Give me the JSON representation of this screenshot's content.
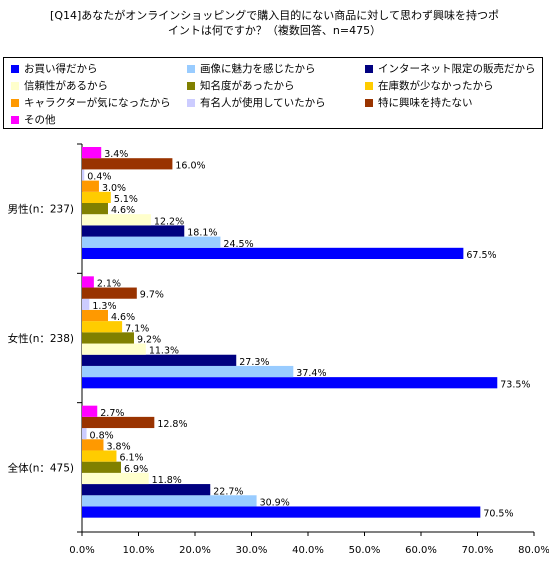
{
  "title": {
    "line1": "[Q14]あなたがオンラインショッピングで購入目的にない商品に対して思わず興味を持つポ",
    "line2": "イントは何ですか？（複数回答、n=475）"
  },
  "chart_data": {
    "type": "bar",
    "orientation": "horizontal",
    "groups": [
      "男性(n：237)",
      "女性(n：238)",
      "全体(n：475)"
    ],
    "series": [
      {
        "name": "お買い得だから",
        "color": "#0000FF",
        "values": [
          67.5,
          73.5,
          70.5
        ]
      },
      {
        "name": "画像に魅力を感じたから",
        "color": "#99CCFF",
        "values": [
          24.5,
          37.4,
          30.9
        ]
      },
      {
        "name": "インターネット限定の販売だから",
        "color": "#000080",
        "values": [
          18.1,
          27.3,
          22.7
        ]
      },
      {
        "name": "信頼性があるから",
        "color": "#FFFFCC",
        "values": [
          12.2,
          11.3,
          11.8
        ]
      },
      {
        "name": "知名度があったから",
        "color": "#808000",
        "values": [
          4.6,
          9.2,
          6.9
        ]
      },
      {
        "name": "在庫数が少なかったから",
        "color": "#FFCC00",
        "values": [
          5.1,
          7.1,
          6.1
        ]
      },
      {
        "name": "キャラクターが気になったから",
        "color": "#FF9900",
        "values": [
          3.0,
          4.6,
          3.8
        ]
      },
      {
        "name": "有名人が使用していたから",
        "color": "#CCCCFF",
        "values": [
          0.4,
          1.3,
          0.8
        ]
      },
      {
        "name": "特に興味を持たない",
        "color": "#993300",
        "values": [
          16.0,
          9.7,
          12.8
        ]
      },
      {
        "name": "その他",
        "color": "#FF00FF",
        "values": [
          3.4,
          2.1,
          2.7
        ]
      }
    ],
    "xticks": [
      "0.0%",
      "10.0%",
      "20.0%",
      "30.0%",
      "40.0%",
      "50.0%",
      "60.0%",
      "70.0%",
      "80.0%"
    ],
    "xlim": [
      0,
      80
    ],
    "value_suffix": "%",
    "legend_position": "top",
    "grid": false
  }
}
